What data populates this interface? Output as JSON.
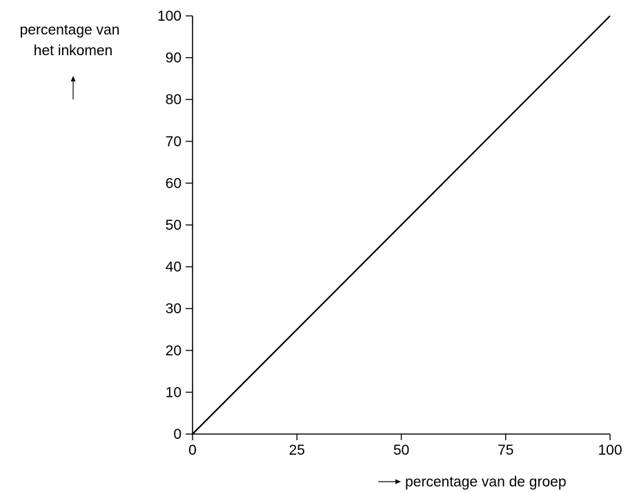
{
  "chart_data": {
    "type": "line",
    "title": "",
    "ylabel": [
      "percentage van",
      "het inkomen"
    ],
    "xlabel": "percentage van de groep",
    "xlim": [
      0,
      100
    ],
    "ylim": [
      0,
      100
    ],
    "x_ticks": [
      0,
      25,
      50,
      75,
      100
    ],
    "y_ticks": [
      0,
      10,
      20,
      30,
      40,
      50,
      60,
      70,
      80,
      90,
      100
    ],
    "grid": false,
    "legend": "none",
    "series": [
      {
        "x": [
          0,
          100
        ],
        "y": [
          0,
          100
        ]
      }
    ],
    "colors": {
      "line": "#000000",
      "axis": "#000000"
    }
  }
}
